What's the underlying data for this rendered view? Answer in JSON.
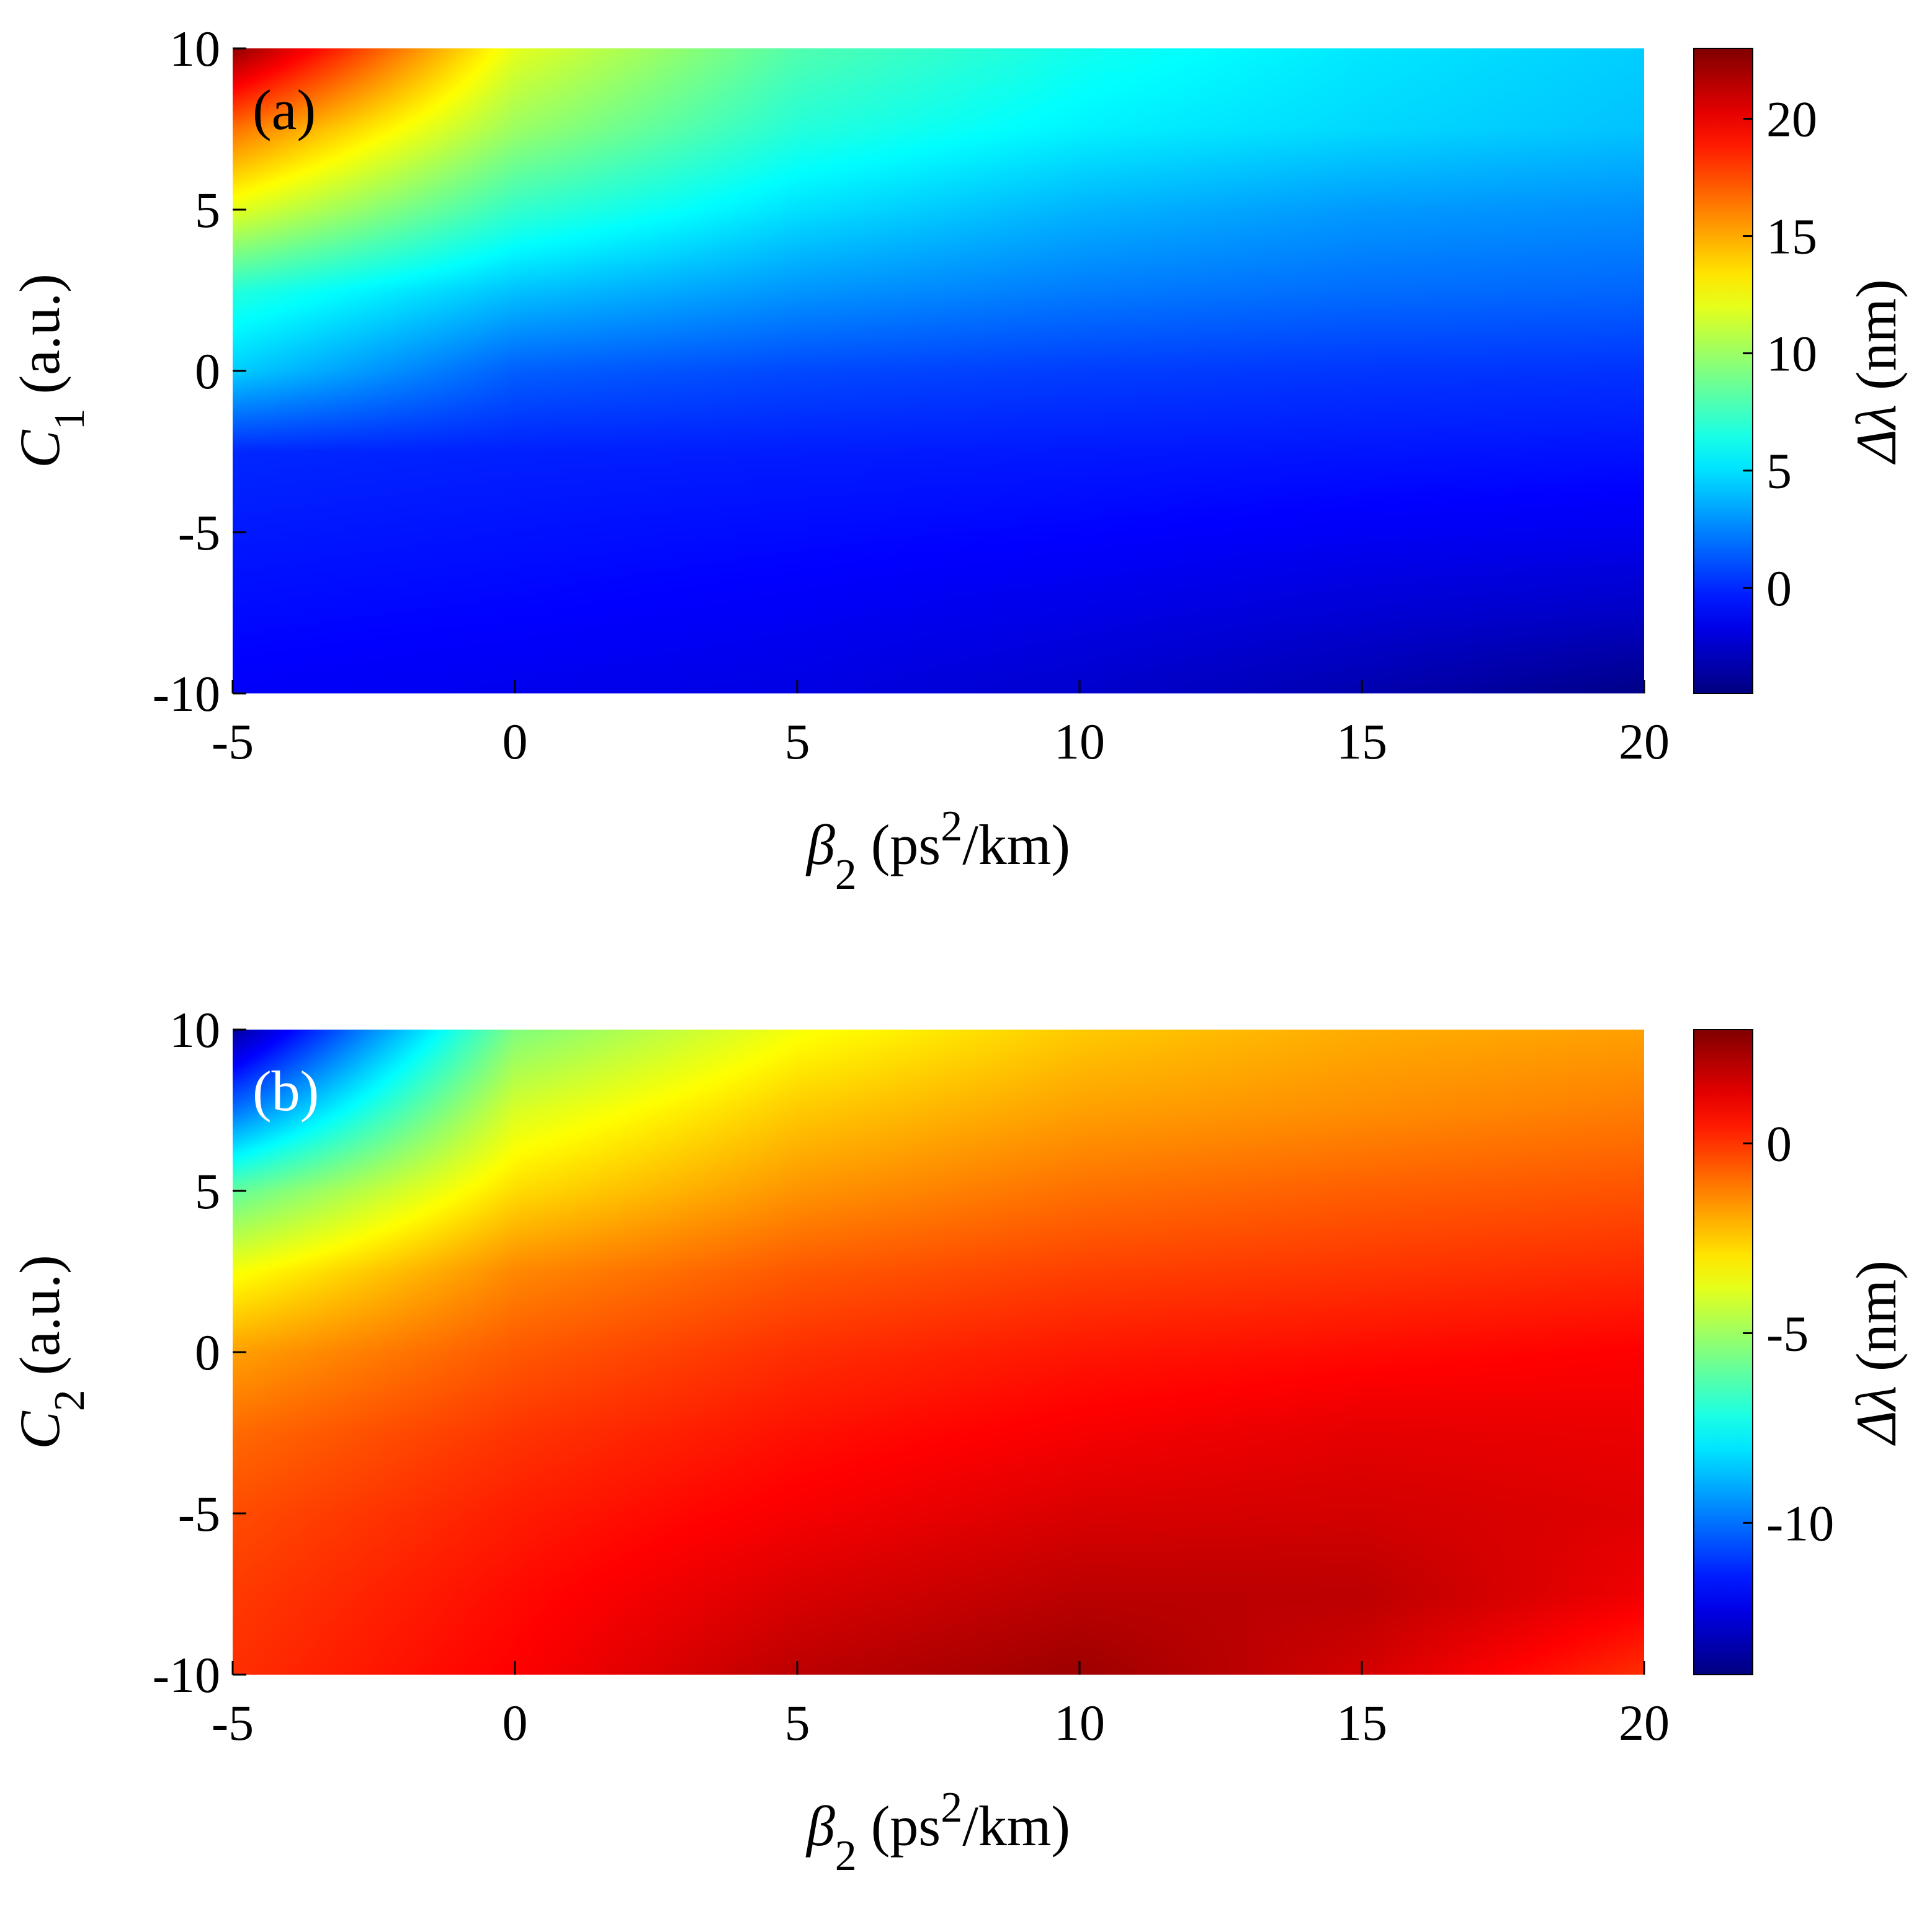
{
  "chart_data": [
    {
      "type": "heatmap",
      "panel_label": "(a)",
      "panel_label_color": "#000000",
      "xlabel": {
        "sym": "β",
        "sub": "2",
        "unit_pre": " (ps",
        "sup": "2",
        "unit_post": "/km)"
      },
      "ylabel": {
        "sym": "C",
        "sub": "1",
        "unit": " (a.u.)"
      },
      "colorbar_label": {
        "sym": "Δλ",
        "unit": " (nm)"
      },
      "x_range": [
        -5,
        20
      ],
      "y_range": [
        -10,
        10
      ],
      "x_ticks": [
        -5,
        0,
        5,
        10,
        15,
        20
      ],
      "y_ticks": [
        -10,
        -5,
        0,
        5,
        10
      ],
      "x_tick_labels": [
        "-5",
        "0",
        "5",
        "10",
        "15",
        "20"
      ],
      "y_tick_labels": [
        "-10",
        "-5",
        "0",
        "5",
        "10"
      ],
      "colorbar_range": [
        -4.5,
        23
      ],
      "colorbar_ticks": [
        0,
        5,
        10,
        15,
        20
      ],
      "colorbar_tick_labels": [
        "0",
        "5",
        "10",
        "15",
        "20"
      ],
      "colormap": "jet",
      "x": [
        -5,
        0,
        5,
        10,
        15,
        20
      ],
      "y": [
        10,
        7.5,
        5,
        2.5,
        0,
        -2.5,
        -5,
        -7.5,
        -10
      ],
      "z": [
        [
          22.5,
          12.0,
          8.0,
          6.3,
          5.2,
          4.5
        ],
        [
          16.5,
          10.0,
          6.8,
          5.5,
          4.8,
          4.2
        ],
        [
          12.0,
          7.2,
          5.0,
          3.8,
          3.1,
          2.8
        ],
        [
          6.8,
          4.2,
          3.0,
          2.3,
          1.9,
          1.7
        ],
        [
          4.5,
          1.5,
          0.9,
          0.6,
          0.4,
          0.3
        ],
        [
          0.0,
          -0.2,
          -0.3,
          -0.4,
          -0.5,
          -0.6
        ],
        [
          -0.4,
          -0.6,
          -0.8,
          -1.0,
          -1.3,
          -1.5
        ],
        [
          -0.8,
          -1.0,
          -1.3,
          -1.7,
          -2.2,
          -2.6
        ],
        [
          -1.2,
          -1.5,
          -1.8,
          -2.4,
          -3.2,
          -4.3
        ]
      ]
    },
    {
      "type": "heatmap",
      "panel_label": "(b)",
      "panel_label_color": "#ffffff",
      "xlabel": {
        "sym": "β",
        "sub": "2",
        "unit_pre": " (ps",
        "sup": "2",
        "unit_post": "/km)"
      },
      "ylabel": {
        "sym": "C",
        "sub": "2",
        "unit": " (a.u.)"
      },
      "colorbar_label": {
        "sym": "Δλ",
        "unit": " (nm)"
      },
      "x_range": [
        -5,
        20
      ],
      "y_range": [
        -10,
        10
      ],
      "x_ticks": [
        -5,
        0,
        5,
        10,
        15,
        20
      ],
      "y_ticks": [
        -10,
        -5,
        0,
        5,
        10
      ],
      "x_tick_labels": [
        "-5",
        "0",
        "5",
        "10",
        "15",
        "20"
      ],
      "y_tick_labels": [
        "-10",
        "-5",
        "0",
        "5",
        "10"
      ],
      "colorbar_range": [
        -14,
        3
      ],
      "colorbar_ticks": [
        -10,
        -5,
        0
      ],
      "colorbar_tick_labels": [
        "-10",
        "-5",
        "0"
      ],
      "colormap": "jet",
      "x": [
        -5,
        0,
        5,
        10,
        15,
        20
      ],
      "y": [
        10,
        7.5,
        5,
        2.5,
        0,
        -2.5,
        -5,
        -7.5,
        -10
      ],
      "z": [
        [
          -13.5,
          -5.5,
          -3.5,
          -2.5,
          -2.0,
          -1.8
        ],
        [
          -10.0,
          -4.0,
          -2.5,
          -1.8,
          -1.5,
          -1.2
        ],
        [
          -6.0,
          -2.8,
          -1.6,
          -1.0,
          -0.7,
          -0.5
        ],
        [
          -3.5,
          -1.4,
          -0.6,
          -0.2,
          0.0,
          0.2
        ],
        [
          -1.8,
          -0.6,
          0.1,
          0.5,
          0.7,
          0.9
        ],
        [
          -0.9,
          0.0,
          0.6,
          1.0,
          1.3,
          1.2
        ],
        [
          -0.4,
          0.4,
          1.0,
          1.5,
          1.6,
          1.4
        ],
        [
          -0.1,
          0.7,
          1.5,
          2.0,
          2.0,
          1.1
        ],
        [
          0.1,
          0.9,
          2.0,
          2.5,
          1.6,
          0.1
        ]
      ]
    }
  ]
}
